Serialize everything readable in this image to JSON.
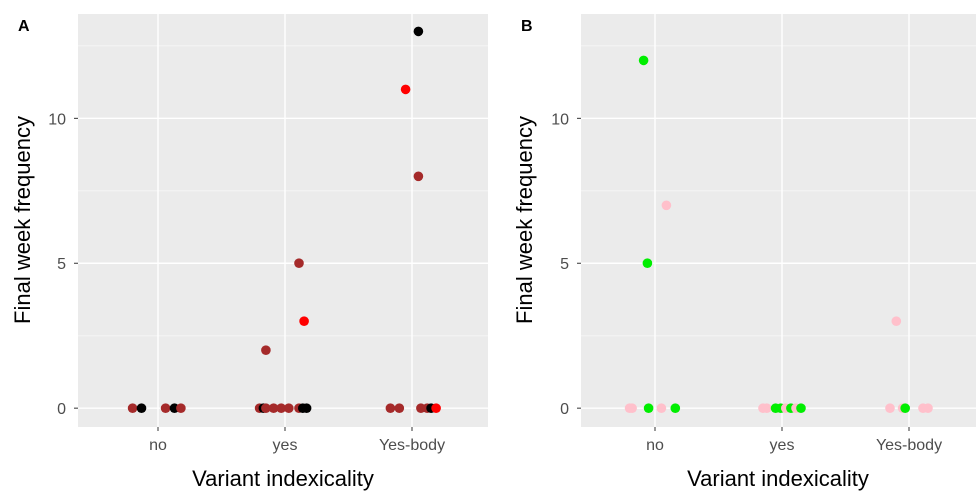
{
  "chart_data": [
    {
      "type": "scatter",
      "panel_label": "A",
      "title": "",
      "xlabel": "Variant indexicality",
      "ylabel": "Final week frequency",
      "categories": [
        "no",
        "yes",
        "Yes-body"
      ],
      "yticks": [
        0,
        5,
        10
      ],
      "ylim": [
        -0.65,
        13.6
      ],
      "grid": true,
      "legend": "none",
      "colors": {
        "dark_red": "#a52a2a",
        "red": "#ff0000",
        "black": "#000000"
      },
      "points": [
        {
          "x": "no",
          "y": 0,
          "color": "#a52a2a",
          "jitter": -0.2
        },
        {
          "x": "no",
          "y": 0,
          "color": "#000000",
          "jitter": -0.13
        },
        {
          "x": "no",
          "y": 0,
          "color": "#a52a2a",
          "jitter": 0.06
        },
        {
          "x": "no",
          "y": 0,
          "color": "#000000",
          "jitter": 0.13
        },
        {
          "x": "no",
          "y": 0,
          "color": "#a52a2a",
          "jitter": 0.18
        },
        {
          "x": "yes",
          "y": 2,
          "color": "#a52a2a",
          "jitter": -0.15
        },
        {
          "x": "yes",
          "y": 5,
          "color": "#a52a2a",
          "jitter": 0.11
        },
        {
          "x": "yes",
          "y": 3,
          "color": "#ff0000",
          "jitter": 0.15
        },
        {
          "x": "yes",
          "y": 0,
          "color": "#a52a2a",
          "jitter": -0.2
        },
        {
          "x": "yes",
          "y": 0,
          "color": "#000000",
          "jitter": -0.17
        },
        {
          "x": "yes",
          "y": 0,
          "color": "#a52a2a",
          "jitter": -0.15
        },
        {
          "x": "yes",
          "y": 0,
          "color": "#a52a2a",
          "jitter": -0.09
        },
        {
          "x": "yes",
          "y": 0,
          "color": "#a52a2a",
          "jitter": -0.03
        },
        {
          "x": "yes",
          "y": 0,
          "color": "#a52a2a",
          "jitter": 0.03
        },
        {
          "x": "yes",
          "y": 0,
          "color": "#a52a2a",
          "jitter": 0.11
        },
        {
          "x": "yes",
          "y": 0,
          "color": "#000000",
          "jitter": 0.14
        },
        {
          "x": "yes",
          "y": 0,
          "color": "#000000",
          "jitter": 0.17
        },
        {
          "x": "Yes-body",
          "y": 13,
          "color": "#000000",
          "jitter": 0.05
        },
        {
          "x": "Yes-body",
          "y": 11,
          "color": "#ff0000",
          "jitter": -0.05
        },
        {
          "x": "Yes-body",
          "y": 8,
          "color": "#a52a2a",
          "jitter": 0.05
        },
        {
          "x": "Yes-body",
          "y": 0,
          "color": "#a52a2a",
          "jitter": -0.17
        },
        {
          "x": "Yes-body",
          "y": 0,
          "color": "#a52a2a",
          "jitter": -0.1
        },
        {
          "x": "Yes-body",
          "y": 0,
          "color": "#a52a2a",
          "jitter": 0.07
        },
        {
          "x": "Yes-body",
          "y": 0,
          "color": "#a52a2a",
          "jitter": 0.12
        },
        {
          "x": "Yes-body",
          "y": 0,
          "color": "#000000",
          "jitter": 0.15
        },
        {
          "x": "Yes-body",
          "y": 0,
          "color": "#ff0000",
          "jitter": 0.19
        }
      ]
    },
    {
      "type": "scatter",
      "panel_label": "B",
      "title": "",
      "xlabel": "Variant indexicality",
      "ylabel": "Final week frequency",
      "categories": [
        "no",
        "yes",
        "Yes-body"
      ],
      "yticks": [
        0,
        5,
        10
      ],
      "ylim": [
        -0.65,
        13.6
      ],
      "grid": true,
      "legend": "none",
      "colors": {
        "green": "#00ee00",
        "pink": "#ffc0cb"
      },
      "points": [
        {
          "x": "no",
          "y": 12,
          "color": "#00ee00",
          "jitter": -0.09
        },
        {
          "x": "no",
          "y": 7,
          "color": "#ffc0cb",
          "jitter": 0.09
        },
        {
          "x": "no",
          "y": 5,
          "color": "#00ee00",
          "jitter": -0.06
        },
        {
          "x": "no",
          "y": 0,
          "color": "#ffc0cb",
          "jitter": -0.2
        },
        {
          "x": "no",
          "y": 0,
          "color": "#ffc0cb",
          "jitter": -0.18
        },
        {
          "x": "no",
          "y": 0,
          "color": "#00ee00",
          "jitter": -0.05
        },
        {
          "x": "no",
          "y": 0,
          "color": "#ffc0cb",
          "jitter": 0.05
        },
        {
          "x": "no",
          "y": 0,
          "color": "#00ee00",
          "jitter": 0.16
        },
        {
          "x": "yes",
          "y": 0,
          "color": "#ffc0cb",
          "jitter": -0.15
        },
        {
          "x": "yes",
          "y": 0,
          "color": "#ffc0cb",
          "jitter": -0.12
        },
        {
          "x": "yes",
          "y": 0,
          "color": "#00ee00",
          "jitter": -0.05
        },
        {
          "x": "yes",
          "y": 0,
          "color": "#00ee00",
          "jitter": -0.01
        },
        {
          "x": "yes",
          "y": 0,
          "color": "#ffc0cb",
          "jitter": 0.03
        },
        {
          "x": "yes",
          "y": 0,
          "color": "#00ee00",
          "jitter": 0.07
        },
        {
          "x": "yes",
          "y": 0,
          "color": "#ffc0cb",
          "jitter": 0.11
        },
        {
          "x": "yes",
          "y": 0,
          "color": "#00ee00",
          "jitter": 0.15
        },
        {
          "x": "Yes-body",
          "y": 3,
          "color": "#ffc0cb",
          "jitter": -0.1
        },
        {
          "x": "Yes-body",
          "y": 0,
          "color": "#ffc0cb",
          "jitter": -0.15
        },
        {
          "x": "Yes-body",
          "y": 0,
          "color": "#ffc0cb",
          "jitter": -0.05
        },
        {
          "x": "Yes-body",
          "y": 0,
          "color": "#00ee00",
          "jitter": -0.03
        },
        {
          "x": "Yes-body",
          "y": 0,
          "color": "#ffc0cb",
          "jitter": 0.11
        },
        {
          "x": "Yes-body",
          "y": 0,
          "color": "#ffc0cb",
          "jitter": 0.15
        }
      ]
    }
  ]
}
